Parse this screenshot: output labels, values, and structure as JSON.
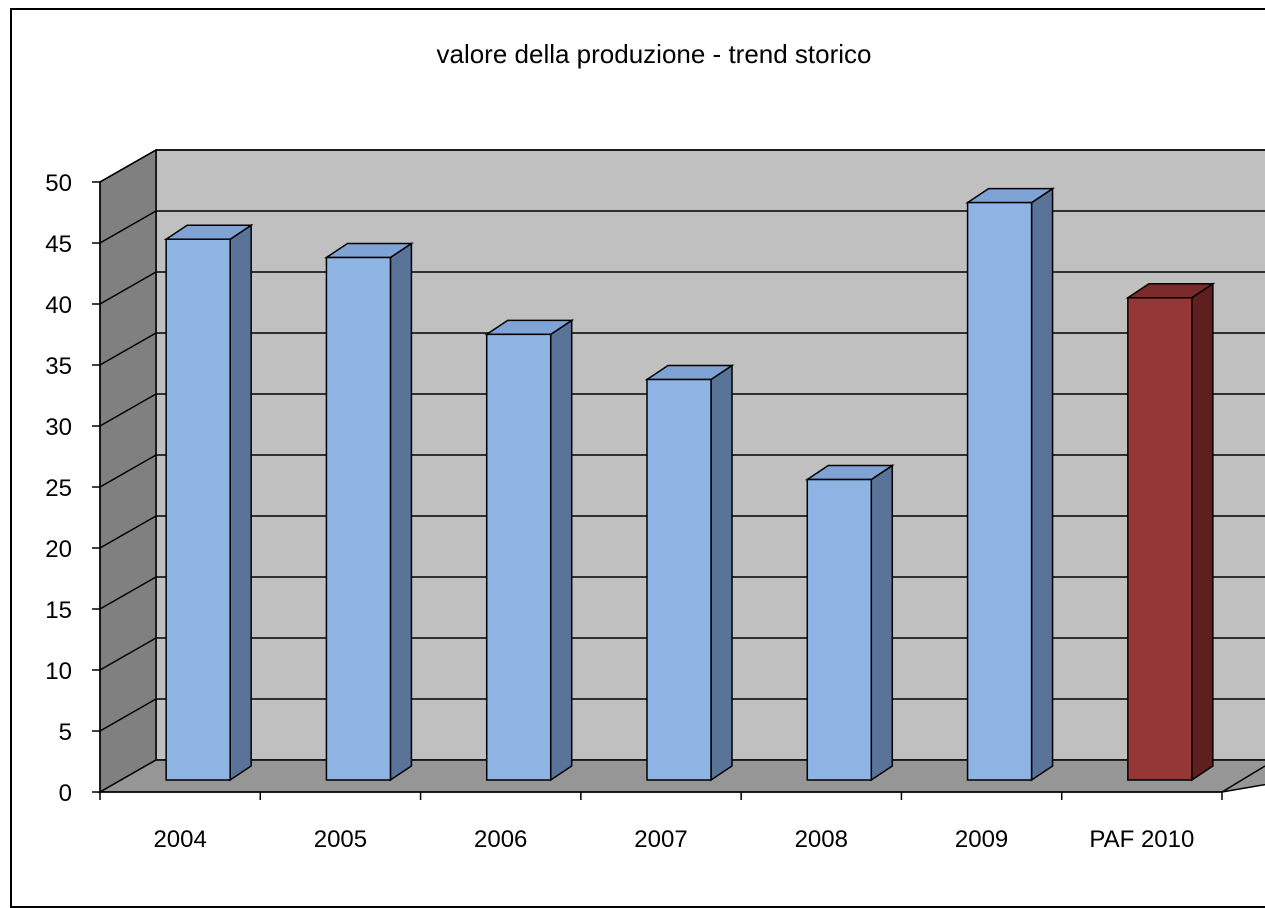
{
  "chart_data": {
    "type": "bar",
    "title": "valore della produzione - trend storico",
    "categories": [
      "2004",
      "2005",
      "2006",
      "2007",
      "2008",
      "2009",
      "PAF 2010"
    ],
    "values": [
      44,
      42.5,
      36.2,
      32.5,
      24.3,
      47,
      39.2
    ],
    "ylim": [
      0,
      50
    ],
    "yticks": [
      "0",
      "5",
      "10",
      "15",
      "20",
      "25",
      "30",
      "35",
      "40",
      "45",
      "50"
    ],
    "grid": true,
    "legend": "none",
    "colors": {
      "bar_front": "#8EB4E3",
      "bar_side": "#5A7398",
      "bar_top": "#7FA3D4",
      "highlight_front": "#953735",
      "highlight_side": "#5E1F1E",
      "highlight_top": "#7A2B29",
      "back_wall": "#C0C0C0",
      "side_wall": "#808080",
      "floor": "#969696"
    },
    "highlight_index": 6
  }
}
